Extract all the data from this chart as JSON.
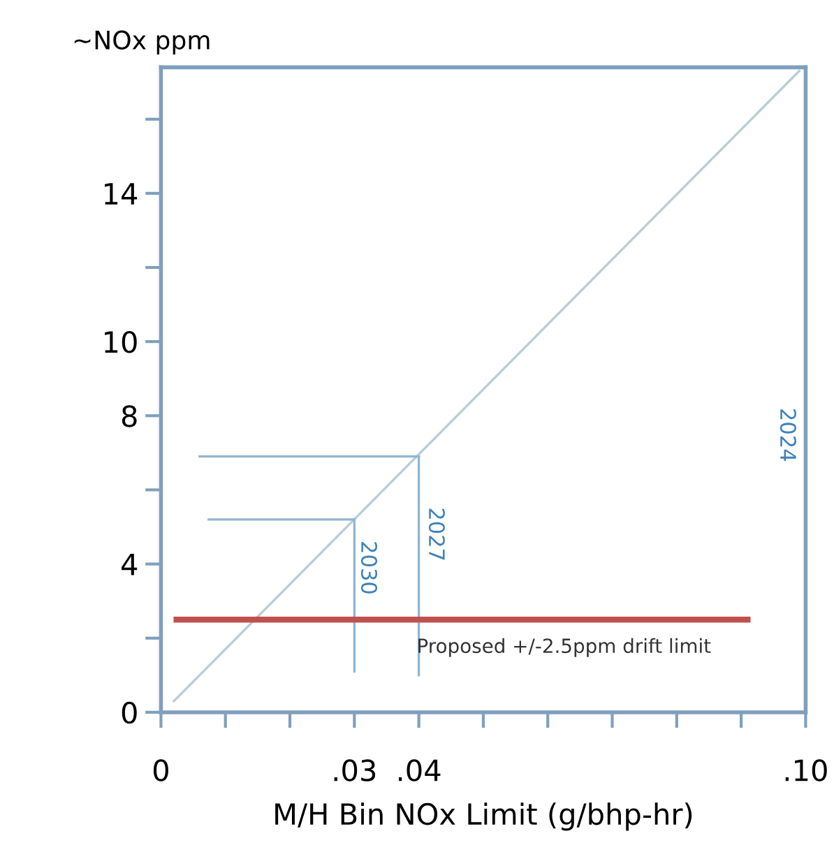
{
  "chart_data": {
    "type": "line",
    "ylabel": "~NOx ppm",
    "xlabel": "M/H Bin NOx Limit (g/bhp-hr)",
    "xlim": [
      0,
      0.1
    ],
    "ylim": [
      0,
      17.4
    ],
    "xticks": [
      {
        "value": 0,
        "label": "0"
      },
      {
        "value": 0.01,
        "label": null
      },
      {
        "value": 0.02,
        "label": null
      },
      {
        "value": 0.03,
        "label": ".03"
      },
      {
        "value": 0.04,
        "label": ".04"
      },
      {
        "value": 0.05,
        "label": null
      },
      {
        "value": 0.06,
        "label": null
      },
      {
        "value": 0.07,
        "label": null
      },
      {
        "value": 0.08,
        "label": null
      },
      {
        "value": 0.09,
        "label": null
      },
      {
        "value": 0.1,
        "label": ".10"
      }
    ],
    "yticks": [
      0,
      {
        "value": 2,
        "label": null
      },
      4,
      {
        "value": 6,
        "label": null
      },
      8,
      10,
      {
        "value": 12,
        "label": null
      },
      14,
      {
        "value": 16,
        "label": null
      }
    ],
    "grid": false,
    "legend": false,
    "marker": "none",
    "line_style": "solid",
    "series": [
      {
        "color": "#b9cdd9",
        "x": [
          0.002,
          0.099
        ],
        "values": [
          0.3,
          17.3
        ]
      },
      {
        "color": "#93b6cf",
        "x": [
          0.006,
          0.04
        ],
        "values": [
          6.9,
          6.9
        ]
      },
      {
        "color": "#93b6cf",
        "x": [
          0.0074,
          0.03
        ],
        "values": [
          5.2,
          5.2
        ]
      },
      {
        "color": "#93b6cf",
        "x": [
          0.04,
          0.04
        ],
        "values": [
          6.9,
          1.0
        ]
      },
      {
        "color": "#93b6cf",
        "x": [
          0.03,
          0.03
        ],
        "values": [
          5.2,
          1.1
        ]
      },
      {
        "color": "#c0504d",
        "x": [
          0.0024,
          0.091
        ],
        "values": [
          2.5,
          2.5
        ]
      }
    ],
    "annotations": [
      "2030",
      "2027",
      "2024",
      {
        "text": "Proposed +/-2.5ppm drift limit",
        "x": 0.0625,
        "y": 2.5
      }
    ]
  }
}
